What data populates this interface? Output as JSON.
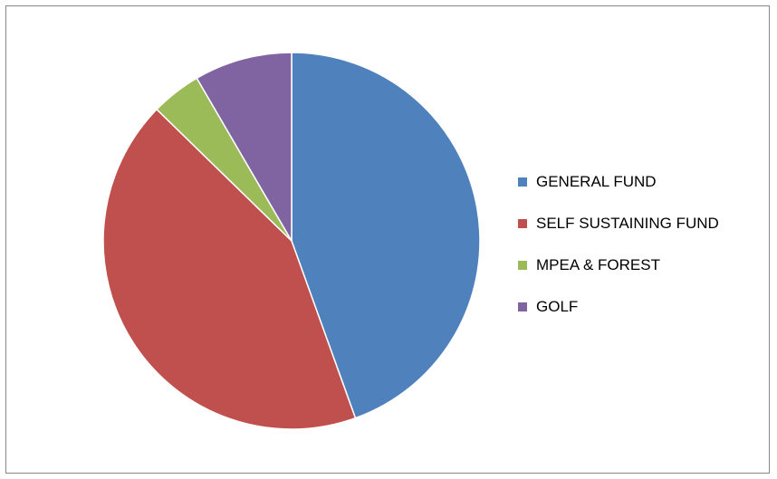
{
  "chart_data": {
    "type": "pie",
    "title": "",
    "legend_position": "right",
    "start_angle_deg": 0,
    "direction": "clockwise",
    "slices": [
      {
        "label": "GENERAL FUND",
        "value": 44.5,
        "color": "#4F81BD"
      },
      {
        "label": "SELF SUSTAINING FUND",
        "value": 42.8,
        "color": "#C0504D"
      },
      {
        "label": "MPEA & FOREST",
        "value": 4.3,
        "color": "#9BBB59"
      },
      {
        "label": "GOLF",
        "value": 8.4,
        "color": "#8064A2"
      }
    ]
  }
}
